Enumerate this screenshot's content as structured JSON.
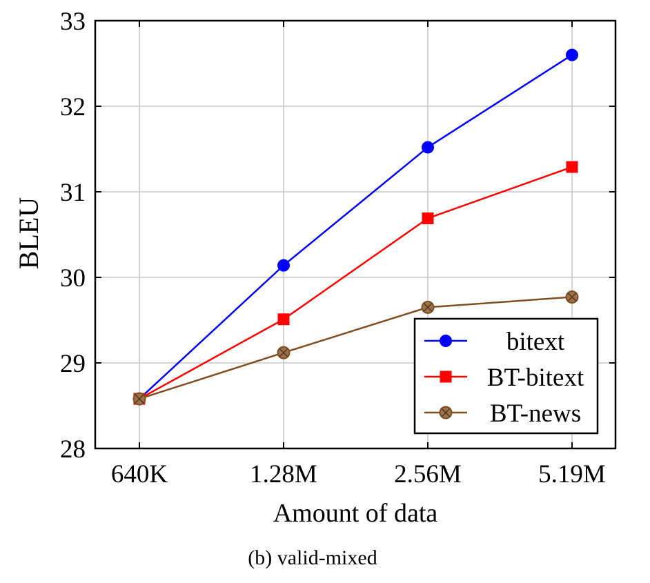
{
  "chart_data": {
    "type": "line",
    "title": "",
    "caption": "(b) valid-mixed",
    "xlabel": "Amount of data",
    "ylabel": "BLEU",
    "categories": [
      "640K",
      "1.28M",
      "2.56M",
      "5.19M"
    ],
    "ylim": [
      28,
      33
    ],
    "yticks": [
      28,
      29,
      30,
      31,
      32,
      33
    ],
    "grid": true,
    "legend_position": "bottom-right",
    "series": [
      {
        "name": "bitext",
        "color": "#0000ff",
        "marker": "circle",
        "values": [
          28.58,
          30.14,
          31.52,
          32.6
        ]
      },
      {
        "name": "BT-bitext",
        "color": "#ff0000",
        "marker": "square",
        "values": [
          28.58,
          29.51,
          30.69,
          31.29
        ]
      },
      {
        "name": "BT-news",
        "color": "#7f4f1f",
        "marker": "crossed-circle",
        "values": [
          28.58,
          29.12,
          29.65,
          29.77
        ]
      }
    ]
  }
}
